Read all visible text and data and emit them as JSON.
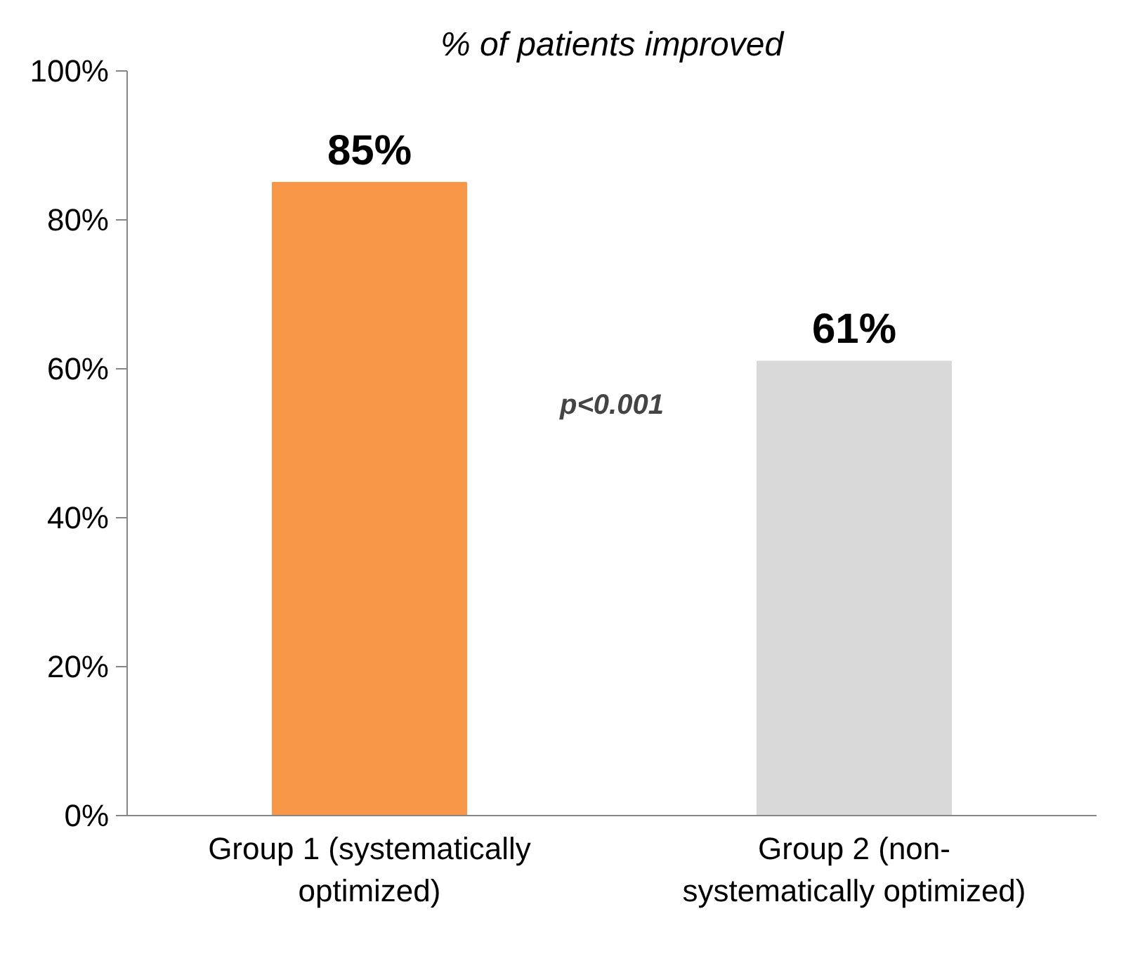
{
  "chart_data": {
    "type": "bar",
    "title": "% of patients improved",
    "categories": [
      "Group 1 (systematically\noptimized)",
      "Group 2 (non-\nsystematically optimized)"
    ],
    "values": [
      85,
      61
    ],
    "colors": [
      "#f79646",
      "#d9d9d9"
    ],
    "value_labels": [
      "85%",
      "61%"
    ],
    "ylim": [
      0,
      100
    ],
    "yticks": [
      {
        "value": 0,
        "label": "0%"
      },
      {
        "value": 20,
        "label": "20%"
      },
      {
        "value": 40,
        "label": "40%"
      },
      {
        "value": 60,
        "label": "60%"
      },
      {
        "value": 80,
        "label": "80%"
      },
      {
        "value": 100,
        "label": "100%"
      }
    ],
    "annotations": [
      "p<0.001"
    ],
    "grid": false
  }
}
